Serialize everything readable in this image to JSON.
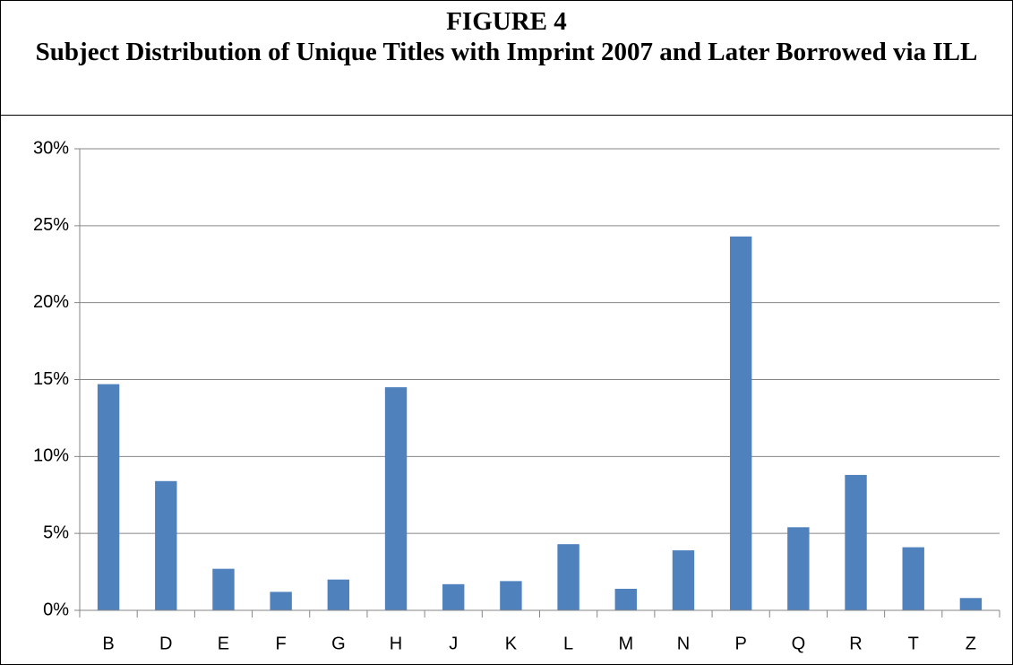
{
  "chart_data": {
    "type": "bar",
    "title": "FIGURE 4",
    "subtitle": "Subject Distribution of Unique Titles with Imprint 2007 and Later Borrowed via ILL",
    "categories": [
      "B",
      "D",
      "E",
      "F",
      "G",
      "H",
      "J",
      "K",
      "L",
      "M",
      "N",
      "P",
      "Q",
      "R",
      "T",
      "Z"
    ],
    "values": [
      14.7,
      8.4,
      2.7,
      1.2,
      2.0,
      14.5,
      1.7,
      1.9,
      4.3,
      1.4,
      3.9,
      24.3,
      5.4,
      8.8,
      4.1,
      0.8
    ],
    "color": "#4f81bd",
    "ylim": [
      0,
      30
    ],
    "yticks": [
      {
        "value": 0,
        "label": "0%"
      },
      {
        "value": 5,
        "label": "5%"
      },
      {
        "value": 10,
        "label": "10%"
      },
      {
        "value": 15,
        "label": "15%"
      },
      {
        "value": 20,
        "label": "20%"
      },
      {
        "value": 25,
        "label": "25%"
      },
      {
        "value": 30,
        "label": "30%"
      }
    ],
    "grid": true
  }
}
